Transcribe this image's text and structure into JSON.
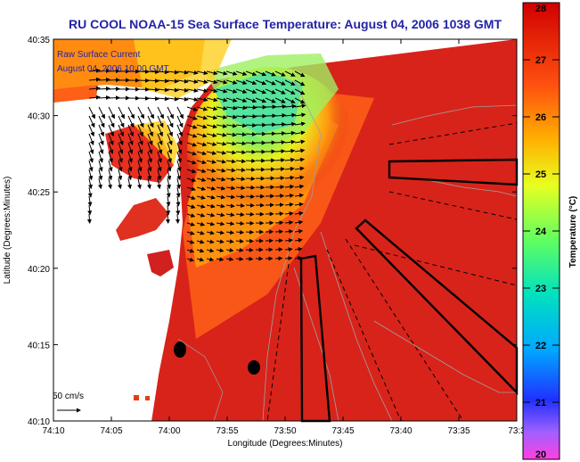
{
  "title": "RU COOL  NOAA-15  Sea Surface Temperature:  August 04, 2006 1038 GMT",
  "map": {
    "current_label_line1": "Raw Surface Current",
    "current_label_line2": "August 04, 2006 10:00 GMT",
    "scale_label": "50 cm/s",
    "xlabel": "Longitude (Degrees:Minutes)",
    "ylabel": "Latitude (Degrees:Minutes)",
    "x_ticks": [
      "74:10",
      "74:05",
      "74:00",
      "73:55",
      "73:50",
      "73:45",
      "73:40",
      "73:35",
      "73:3"
    ],
    "y_ticks": [
      "40:35",
      "40:30",
      "40:25",
      "40:20",
      "40:15",
      "40:10"
    ]
  },
  "colorbar": {
    "label": "Temperature (°C)",
    "ticks": [
      "28",
      "27",
      "26",
      "25",
      "24",
      "23",
      "22",
      "21",
      "20"
    ],
    "min": 20,
    "max": 28
  },
  "colors": {
    "title": "#2323a8",
    "warm": "#d81e1e",
    "mid": "#ffd700",
    "cool": "#30d0c0"
  }
}
